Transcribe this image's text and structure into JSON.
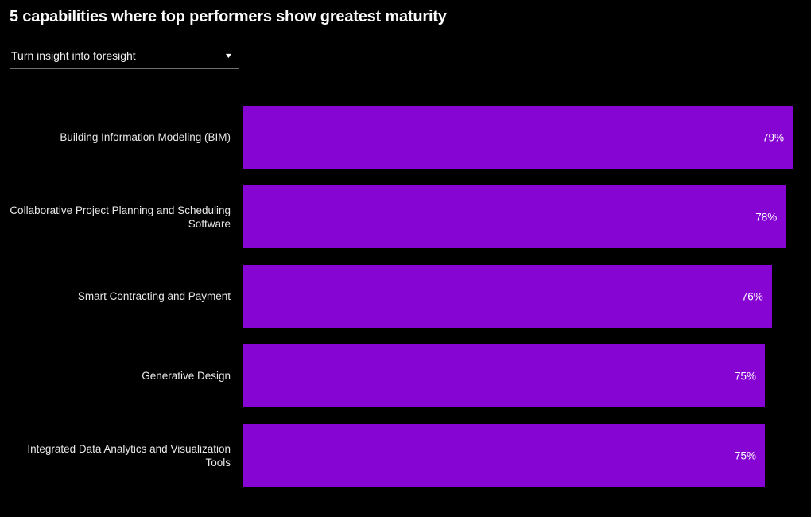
{
  "title": "5 capabilities where top performers show greatest maturity",
  "dropdown": {
    "value": "Turn insight into foresight",
    "caret_icon": "▼"
  },
  "colors": {
    "background": "#000000",
    "bar": "#8705d2",
    "title_text": "#fafafa",
    "label_text": "#e8e8e8",
    "value_text": "#ffffff",
    "dropdown_underline": "#6f6f6f"
  },
  "chart_data": {
    "type": "bar",
    "orientation": "horizontal",
    "title": "5 capabilities where top performers show greatest maturity",
    "categories": [
      "Building Information Modeling (BIM)",
      "Collaborative Project Planning and Scheduling Software",
      "Smart Contracting and Payment",
      "Generative Design",
      "Integrated Data Analytics and Visualization Tools"
    ],
    "values": [
      79,
      78,
      76,
      75,
      75
    ],
    "value_labels": [
      "79%",
      "78%",
      "76%",
      "75%",
      "75%"
    ],
    "xlabel": "",
    "ylabel": "",
    "xlim": [
      0,
      100
    ],
    "grid": false,
    "legend": null,
    "value_label_position": "inside-end",
    "axis_ticks_visible": false
  }
}
